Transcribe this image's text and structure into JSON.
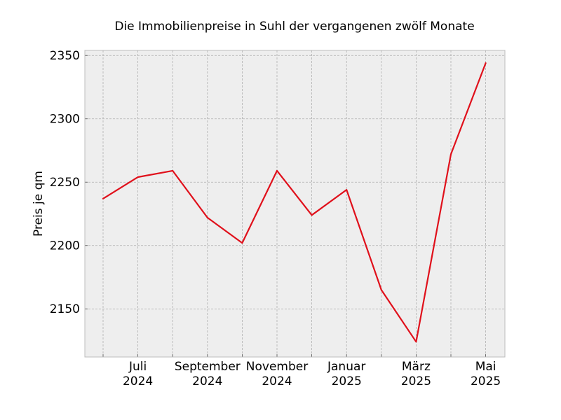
{
  "chart_data": {
    "type": "line",
    "title": "Die Immobilienpreise in Suhl der vergangenen zwölf Monate",
    "xlabel": "",
    "ylabel": "Preis je qm",
    "x": [
      "2024-06",
      "2024-07",
      "2024-08",
      "2024-09",
      "2024-10",
      "2024-11",
      "2024-12",
      "2025-01",
      "2025-02",
      "2025-03",
      "2025-04",
      "2025-05"
    ],
    "x_tick_labels": [
      {
        "x": "2024-07",
        "line1": "Juli",
        "line2": "2024"
      },
      {
        "x": "2024-09",
        "line1": "September",
        "line2": "2024"
      },
      {
        "x": "2024-11",
        "line1": "November",
        "line2": "2024"
      },
      {
        "x": "2025-01",
        "line1": "Januar",
        "line2": "2025"
      },
      {
        "x": "2025-03",
        "line1": "März",
        "line2": "2025"
      },
      {
        "x": "2025-05",
        "line1": "Mai",
        "line2": "2025"
      }
    ],
    "y_ticks": [
      2150,
      2200,
      2250,
      2300,
      2350
    ],
    "ylim": [
      2112,
      2354
    ],
    "series": [
      {
        "values": [
          2237,
          2254,
          2259,
          2222,
          2202,
          2259,
          2224,
          2244,
          2165,
          2124,
          2272,
          2344
        ],
        "color": "#e0101b"
      }
    ],
    "grid": true,
    "legend": "none",
    "colors": {
      "plot_background": "#eeeeee",
      "plot_border": "#bcbcbc",
      "grid": "#b0b0b0"
    }
  }
}
